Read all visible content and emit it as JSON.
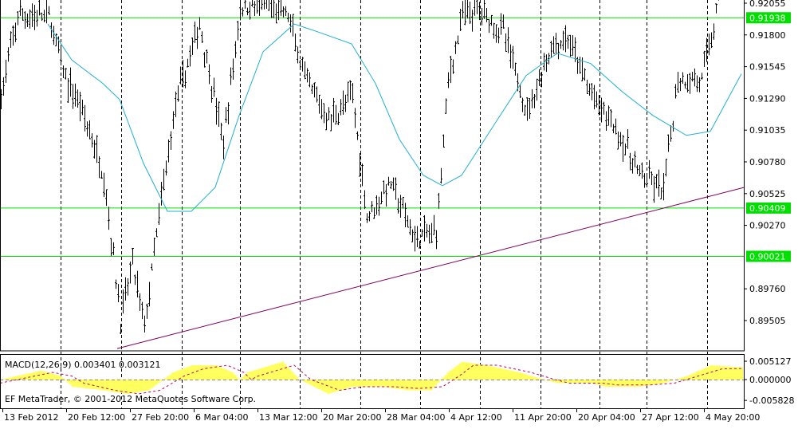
{
  "chart_data": {
    "type": "ohlc-bar",
    "price_axis": {
      "ticks": [
        0.92055,
        0.918,
        0.91545,
        0.9129,
        0.91035,
        0.9078,
        0.90525,
        0.9027,
        0.8976,
        0.89505
      ],
      "ylim": [
        0.8928,
        0.9206
      ],
      "tick_labels": [
        "0.92055",
        "0.91800",
        "0.91545",
        "0.91290",
        "0.91035",
        "0.90780",
        "0.90525",
        "0.90270",
        "0.89760",
        "0.89505"
      ]
    },
    "time_axis": {
      "tick_labels": [
        "13 Feb 2012",
        "20 Feb 12:00",
        "27 Feb 20:00",
        "6 Mar 04:00",
        "13 Mar 12:00",
        "20 Mar 20:00",
        "28 Mar 04:00",
        "4 Apr 12:00",
        "11 Apr 20:00",
        "20 Apr 04:00",
        "27 Apr 12:00",
        "4 May 20:00"
      ],
      "grid": "vertical dashed"
    },
    "horizontal_levels": [
      {
        "price": 0.91938,
        "label": "0.91938",
        "color": "#00e000"
      },
      {
        "price": 0.90409,
        "label": "0.90409",
        "color": "#00e000"
      },
      {
        "price": 0.90021,
        "label": "0.90021",
        "color": "#00e000"
      }
    ],
    "trendline": {
      "color": "#800060",
      "start": [
        49,
        0.8928
      ],
      "end": [
        311,
        0.90574
      ]
    },
    "price_path_approx": [
      [
        0,
        0.91312
      ],
      [
        7,
        0.91952
      ],
      [
        20,
        0.91952
      ],
      [
        27,
        0.9144
      ],
      [
        33,
        0.91248
      ],
      [
        43,
        0.90671
      ],
      [
        50,
        0.89517
      ],
      [
        55,
        0.89966
      ],
      [
        60,
        0.89453
      ],
      [
        67,
        0.90478
      ],
      [
        73,
        0.91248
      ],
      [
        83,
        0.91888
      ],
      [
        93,
        0.90927
      ],
      [
        100,
        0.92017
      ],
      [
        110,
        0.92055
      ],
      [
        120,
        0.91952
      ],
      [
        127,
        0.9144
      ],
      [
        137,
        0.91119
      ],
      [
        147,
        0.91312
      ],
      [
        153,
        0.9035
      ],
      [
        163,
        0.90607
      ],
      [
        173,
        0.90158
      ],
      [
        182,
        0.90222
      ],
      [
        187,
        0.9144
      ],
      [
        193,
        0.91952
      ],
      [
        200,
        0.92017
      ],
      [
        210,
        0.91824
      ],
      [
        220,
        0.91183
      ],
      [
        230,
        0.91696
      ],
      [
        237,
        0.9176
      ],
      [
        247,
        0.91312
      ],
      [
        257,
        0.91055
      ],
      [
        267,
        0.90671
      ],
      [
        277,
        0.90542
      ],
      [
        283,
        0.9144
      ],
      [
        293,
        0.9144
      ],
      [
        300,
        0.92055
      ]
    ],
    "moving_average": {
      "color": "#20b0d0",
      "points": [
        [
          20,
          0.91888
        ],
        [
          30,
          0.91599
        ],
        [
          43,
          0.9141
        ],
        [
          50,
          0.91281
        ],
        [
          60,
          0.90768
        ],
        [
          70,
          0.90383
        ],
        [
          80,
          0.90383
        ],
        [
          90,
          0.90576
        ],
        [
          100,
          0.91153
        ],
        [
          110,
          0.91665
        ],
        [
          123,
          0.91888
        ],
        [
          133,
          0.91824
        ],
        [
          147,
          0.91728
        ],
        [
          157,
          0.9141
        ],
        [
          167,
          0.90961
        ],
        [
          177,
          0.90672
        ],
        [
          185,
          0.90589
        ],
        [
          193,
          0.90672
        ],
        [
          207,
          0.9109
        ],
        [
          220,
          0.91474
        ],
        [
          233,
          0.91653
        ],
        [
          247,
          0.9157
        ],
        [
          260,
          0.91346
        ],
        [
          273,
          0.91153
        ],
        [
          287,
          0.90993
        ],
        [
          297,
          0.91025
        ],
        [
          310,
          0.91487
        ]
      ]
    },
    "macd": {
      "label": "MACD(12,26,9) 0.003401 0.003121",
      "params": "12,26,9",
      "main_value": 0.003401,
      "signal_value": 0.003121,
      "ticks": [
        "0.005127",
        "0.000000",
        "-0.005828"
      ],
      "ylim": [
        -0.005828,
        0.005127
      ],
      "histogram_color": "#ffff60",
      "signal_color": "#c00060",
      "histogram": [
        [
          0,
          0
        ],
        [
          17,
          0.0025
        ],
        [
          25,
          0.001
        ],
        [
          30,
          -0.002
        ],
        [
          43,
          -0.003
        ],
        [
          53,
          -0.004
        ],
        [
          62,
          -0.003
        ],
        [
          72,
          0.002
        ],
        [
          80,
          0.004
        ],
        [
          90,
          0.004
        ],
        [
          97,
          0.002
        ],
        [
          100,
          0
        ],
        [
          103,
          0.002
        ],
        [
          113,
          0.004
        ],
        [
          118,
          0.005
        ],
        [
          125,
          0
        ],
        [
          137,
          -0.004
        ],
        [
          147,
          -0.002
        ],
        [
          160,
          -0.002
        ],
        [
          170,
          -0.003
        ],
        [
          180,
          -0.003
        ],
        [
          187,
          0.002
        ],
        [
          193,
          0.005
        ],
        [
          203,
          0.004
        ],
        [
          217,
          0.002
        ],
        [
          227,
          0
        ],
        [
          233,
          -0.001
        ],
        [
          247,
          -0.001
        ],
        [
          253,
          -0.002
        ],
        [
          267,
          -0.002
        ],
        [
          277,
          -0.001
        ],
        [
          287,
          0.001
        ],
        [
          297,
          0.004
        ],
        [
          310,
          0.0034
        ]
      ],
      "signal": [
        [
          0,
          -0.001
        ],
        [
          22,
          0.002
        ],
        [
          30,
          0.001
        ],
        [
          35,
          -0.001
        ],
        [
          48,
          -0.003
        ],
        [
          58,
          -0.004
        ],
        [
          67,
          -0.003
        ],
        [
          77,
          0.001
        ],
        [
          85,
          0.003
        ],
        [
          95,
          0.004
        ],
        [
          102,
          0.002
        ],
        [
          105,
          0
        ],
        [
          108,
          0.001
        ],
        [
          118,
          0.003
        ],
        [
          123,
          0.004
        ],
        [
          130,
          0
        ],
        [
          142,
          -0.003
        ],
        [
          152,
          -0.002
        ],
        [
          165,
          -0.002
        ],
        [
          175,
          -0.0025
        ],
        [
          185,
          -0.002
        ],
        [
          192,
          0.001
        ],
        [
          198,
          0.004
        ],
        [
          208,
          0.004
        ],
        [
          222,
          0.002
        ],
        [
          232,
          0
        ],
        [
          238,
          -0.001
        ],
        [
          252,
          -0.001
        ],
        [
          258,
          -0.0015
        ],
        [
          272,
          -0.0015
        ],
        [
          282,
          -0.001
        ],
        [
          292,
          0.001
        ],
        [
          302,
          0.003
        ],
        [
          310,
          0.0031
        ]
      ]
    },
    "copyright": "EF MetaTrader, © 2001-2012 MetaQuotes Software Corp."
  }
}
